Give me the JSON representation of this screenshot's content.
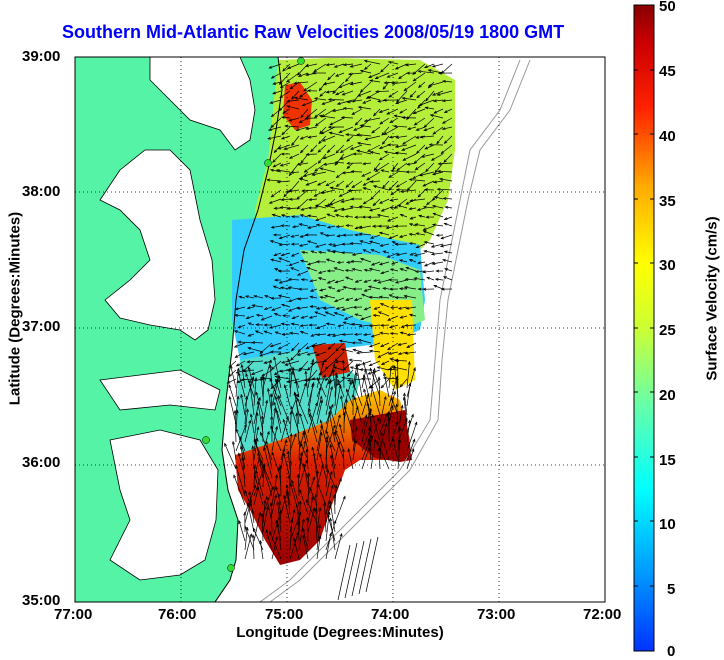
{
  "title": "Southern Mid-Atlantic Raw Velocities 2008/05/19 1800 GMT",
  "xlabel": "Longitude (Degrees:Minutes)",
  "ylabel": "Latitude (Degrees:Minutes)",
  "colorbar": {
    "label": "Surface Velocity (cm/s)",
    "ticks": [
      "0",
      "5",
      "10",
      "15",
      "20",
      "25",
      "30",
      "35",
      "40",
      "45",
      "50"
    ],
    "range": [
      0,
      50
    ]
  },
  "x_ticks": [
    "77:00",
    "76:00",
    "75:00",
    "74:00",
    "73:00",
    "72:00"
  ],
  "y_ticks": [
    "39:00",
    "38:00",
    "37:00",
    "36:00",
    "35:00"
  ],
  "colors": {
    "land": "#55f3a6",
    "water": "#ffffff",
    "title": "#0000ff",
    "sites": "#33dd33"
  }
}
